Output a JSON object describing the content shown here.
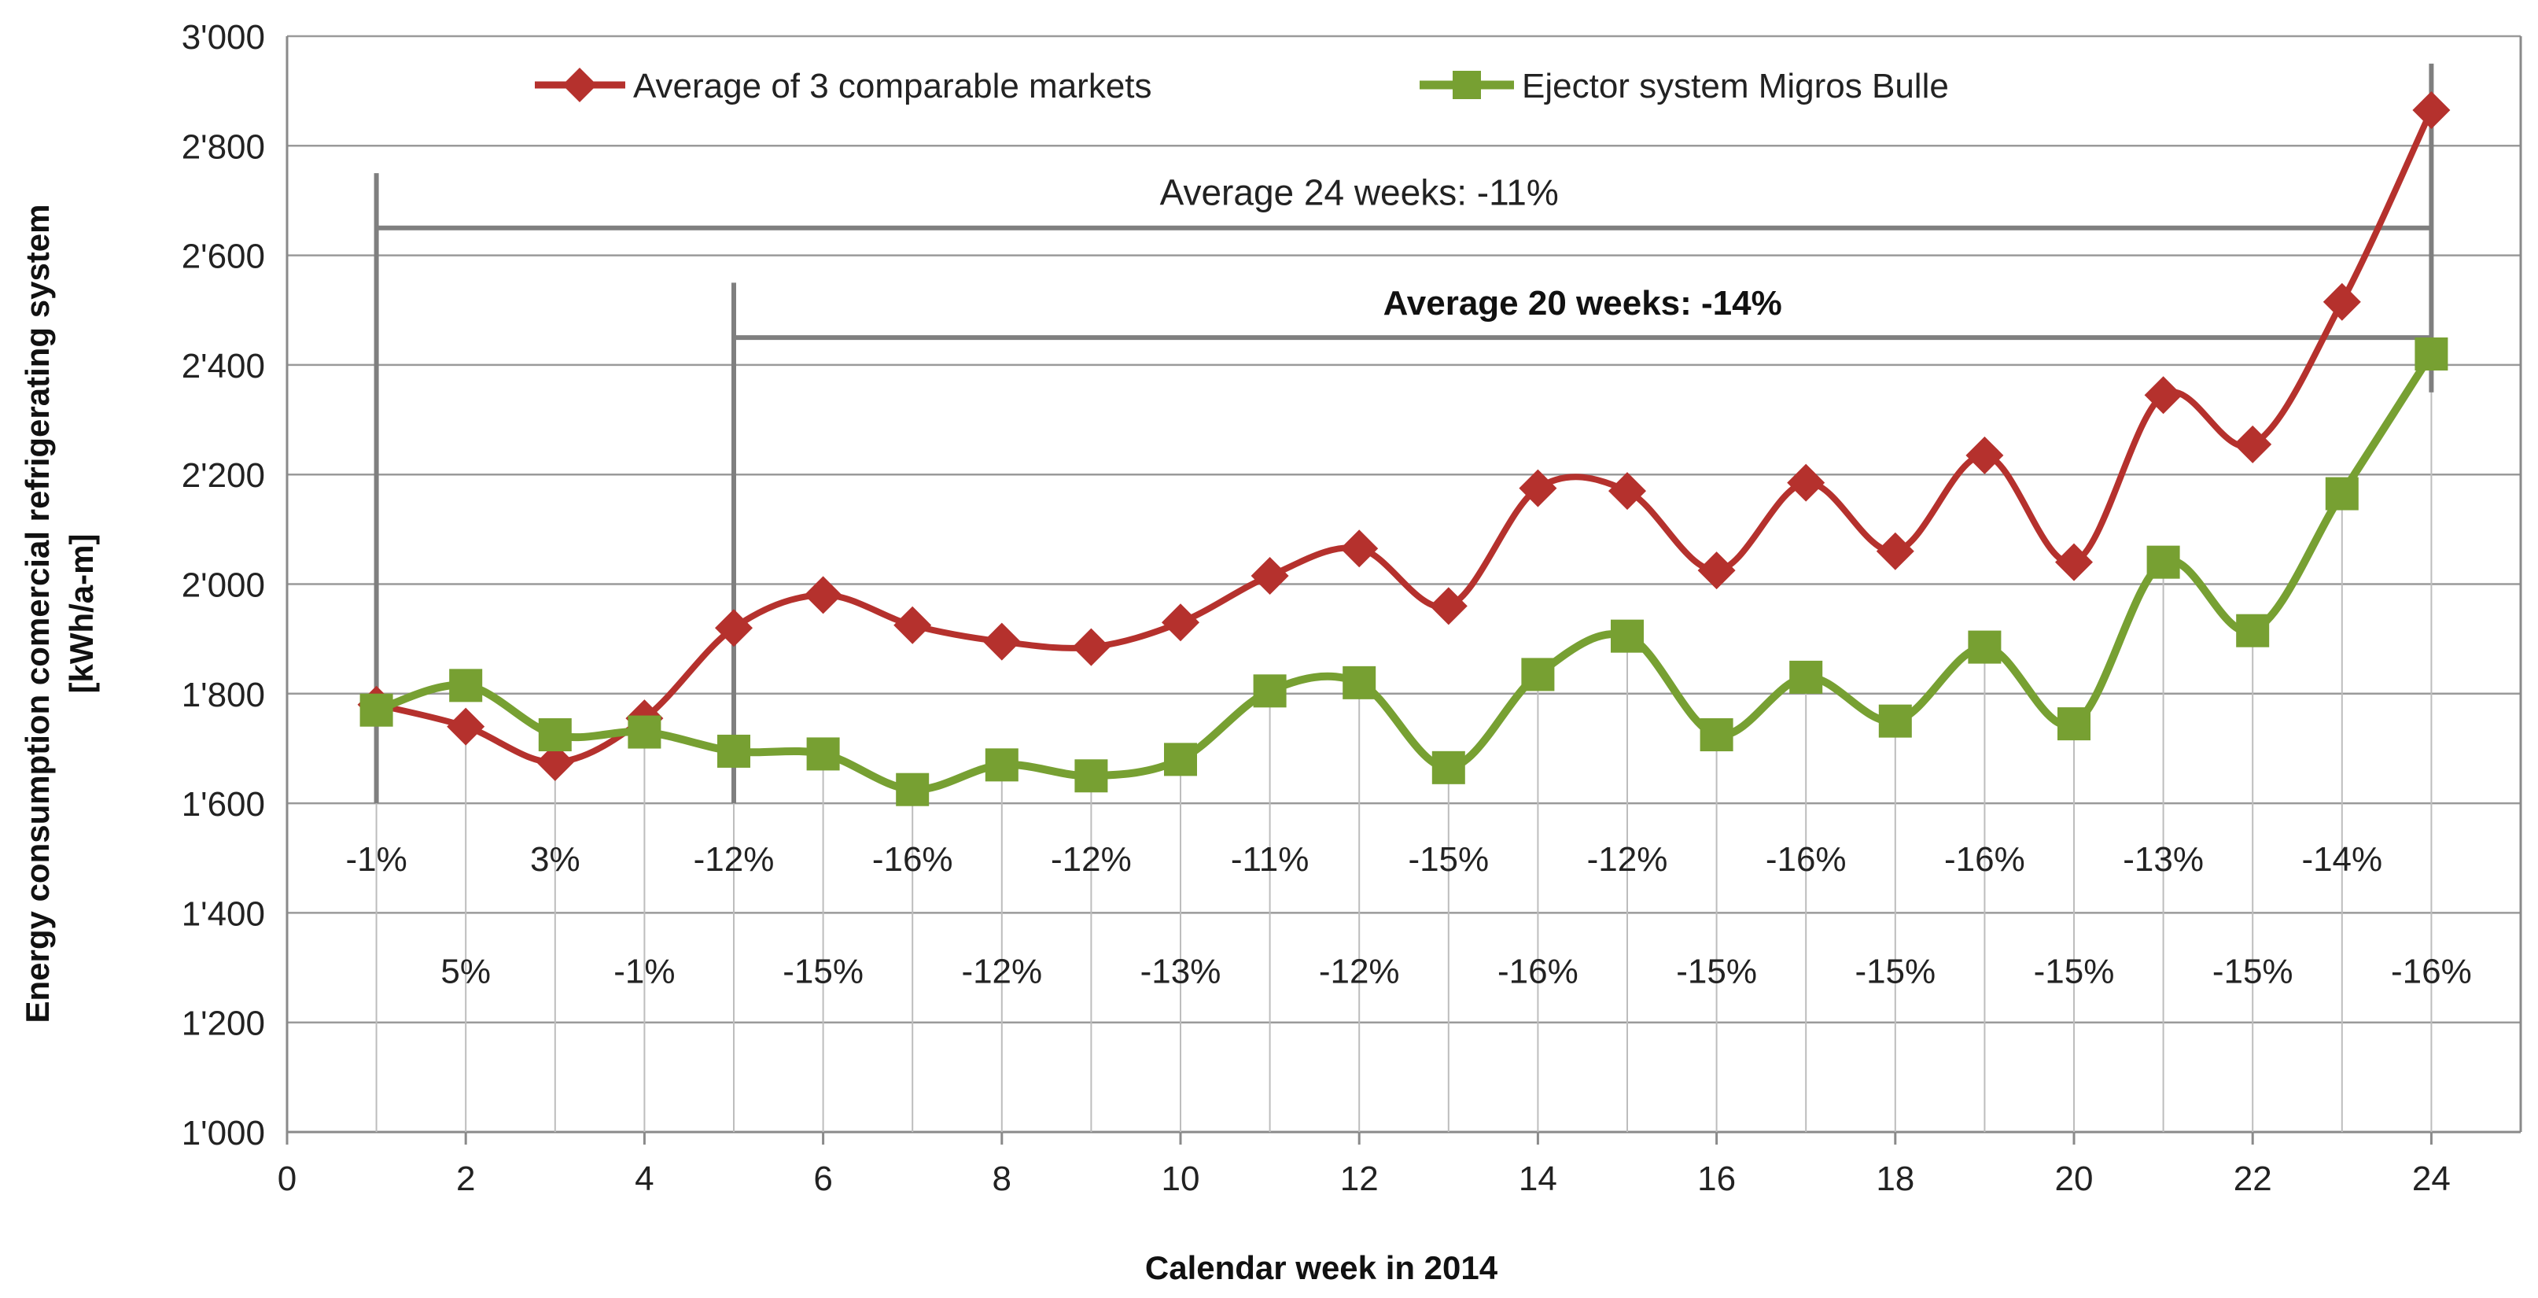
{
  "chart_data": {
    "type": "line",
    "xlabel": "Calendar week in 2014",
    "ylabel_line1": "Energy consumption comercial refrigerating system",
    "ylabel_line2": "[kWh/a-m]",
    "xlim": [
      0,
      25
    ],
    "ylim": [
      1000,
      3000
    ],
    "x_ticks": [
      0,
      2,
      4,
      6,
      8,
      10,
      12,
      14,
      16,
      18,
      20,
      22,
      24
    ],
    "x_tick_labels": [
      "0",
      "2",
      "4",
      "6",
      "8",
      "10",
      "12",
      "14",
      "16",
      "18",
      "20",
      "22",
      "24"
    ],
    "y_ticks": [
      1000,
      1200,
      1400,
      1600,
      1800,
      2000,
      2200,
      2400,
      2600,
      2800,
      3000
    ],
    "y_tick_labels": [
      "1'000",
      "1'200",
      "1'400",
      "1'600",
      "1'800",
      "2'000",
      "2'200",
      "2'400",
      "2'600",
      "2'800",
      "3'000"
    ],
    "grid": "horizontal",
    "legend_placement": "top",
    "series": [
      {
        "name": "Average of 3 comparable markets",
        "color": "#b5312d",
        "marker": "diamond",
        "x": [
          1,
          2,
          3,
          4,
          5,
          6,
          7,
          8,
          9,
          10,
          11,
          12,
          13,
          14,
          15,
          16,
          17,
          18,
          19,
          20,
          21,
          22,
          23,
          24
        ],
        "values": [
          1780,
          1740,
          1675,
          1755,
          1920,
          1980,
          1925,
          1895,
          1885,
          1930,
          2015,
          2065,
          1960,
          2175,
          2170,
          2025,
          2185,
          2060,
          2235,
          2040,
          2345,
          2255,
          2515,
          2865
        ]
      },
      {
        "name": "Ejector system Migros Bulle",
        "color": "#77a032",
        "marker": "square",
        "x": [
          1,
          2,
          3,
          4,
          5,
          6,
          7,
          8,
          9,
          10,
          11,
          12,
          13,
          14,
          15,
          16,
          17,
          18,
          19,
          20,
          21,
          22,
          23,
          24
        ],
        "values": [
          1770,
          1815,
          1725,
          1730,
          1695,
          1690,
          1625,
          1670,
          1650,
          1680,
          1805,
          1820,
          1665,
          1835,
          1905,
          1725,
          1830,
          1750,
          1885,
          1745,
          2040,
          1915,
          2165,
          2420
        ]
      }
    ],
    "weekly_diff_row1": {
      "y_position": 1500,
      "x": [
        1,
        3,
        5,
        7,
        9,
        11,
        13,
        15,
        17,
        19,
        21,
        23
      ],
      "labels": [
        "-1%",
        "3%",
        "-12%",
        "-16%",
        "-12%",
        "-11%",
        "-15%",
        "-12%",
        "-16%",
        "-16%",
        "-13%",
        "-14%"
      ]
    },
    "weekly_diff_row2": {
      "y_position": 1295,
      "x": [
        2,
        4,
        6,
        8,
        10,
        12,
        14,
        16,
        18,
        20,
        22,
        24
      ],
      "labels": [
        "5%",
        "-1%",
        "-15%",
        "-12%",
        "-13%",
        "-12%",
        "-16%",
        "-15%",
        "-15%",
        "-15%",
        "-15%",
        "-16%"
      ]
    },
    "average_bars": [
      {
        "label": "Average 24 weeks:  -11%",
        "bold": false,
        "x_start": 1,
        "x_end": 24,
        "y_level": 2650,
        "label_y": 2715,
        "label_x": 12
      },
      {
        "label": "Average 20 weeks: -14%",
        "bold": true,
        "x_start": 5,
        "x_end": 24,
        "y_level": 2450,
        "label_y": 2515,
        "label_x": 14.5
      }
    ],
    "vertical_markers": [
      {
        "x": 1,
        "y_from": 1600,
        "y_to": 2750
      },
      {
        "x": 5,
        "y_from": 1600,
        "y_to": 2550
      },
      {
        "x": 24,
        "y_from": 2350,
        "y_to": 2950
      }
    ],
    "drop_lines_y_bottom": 1000
  }
}
